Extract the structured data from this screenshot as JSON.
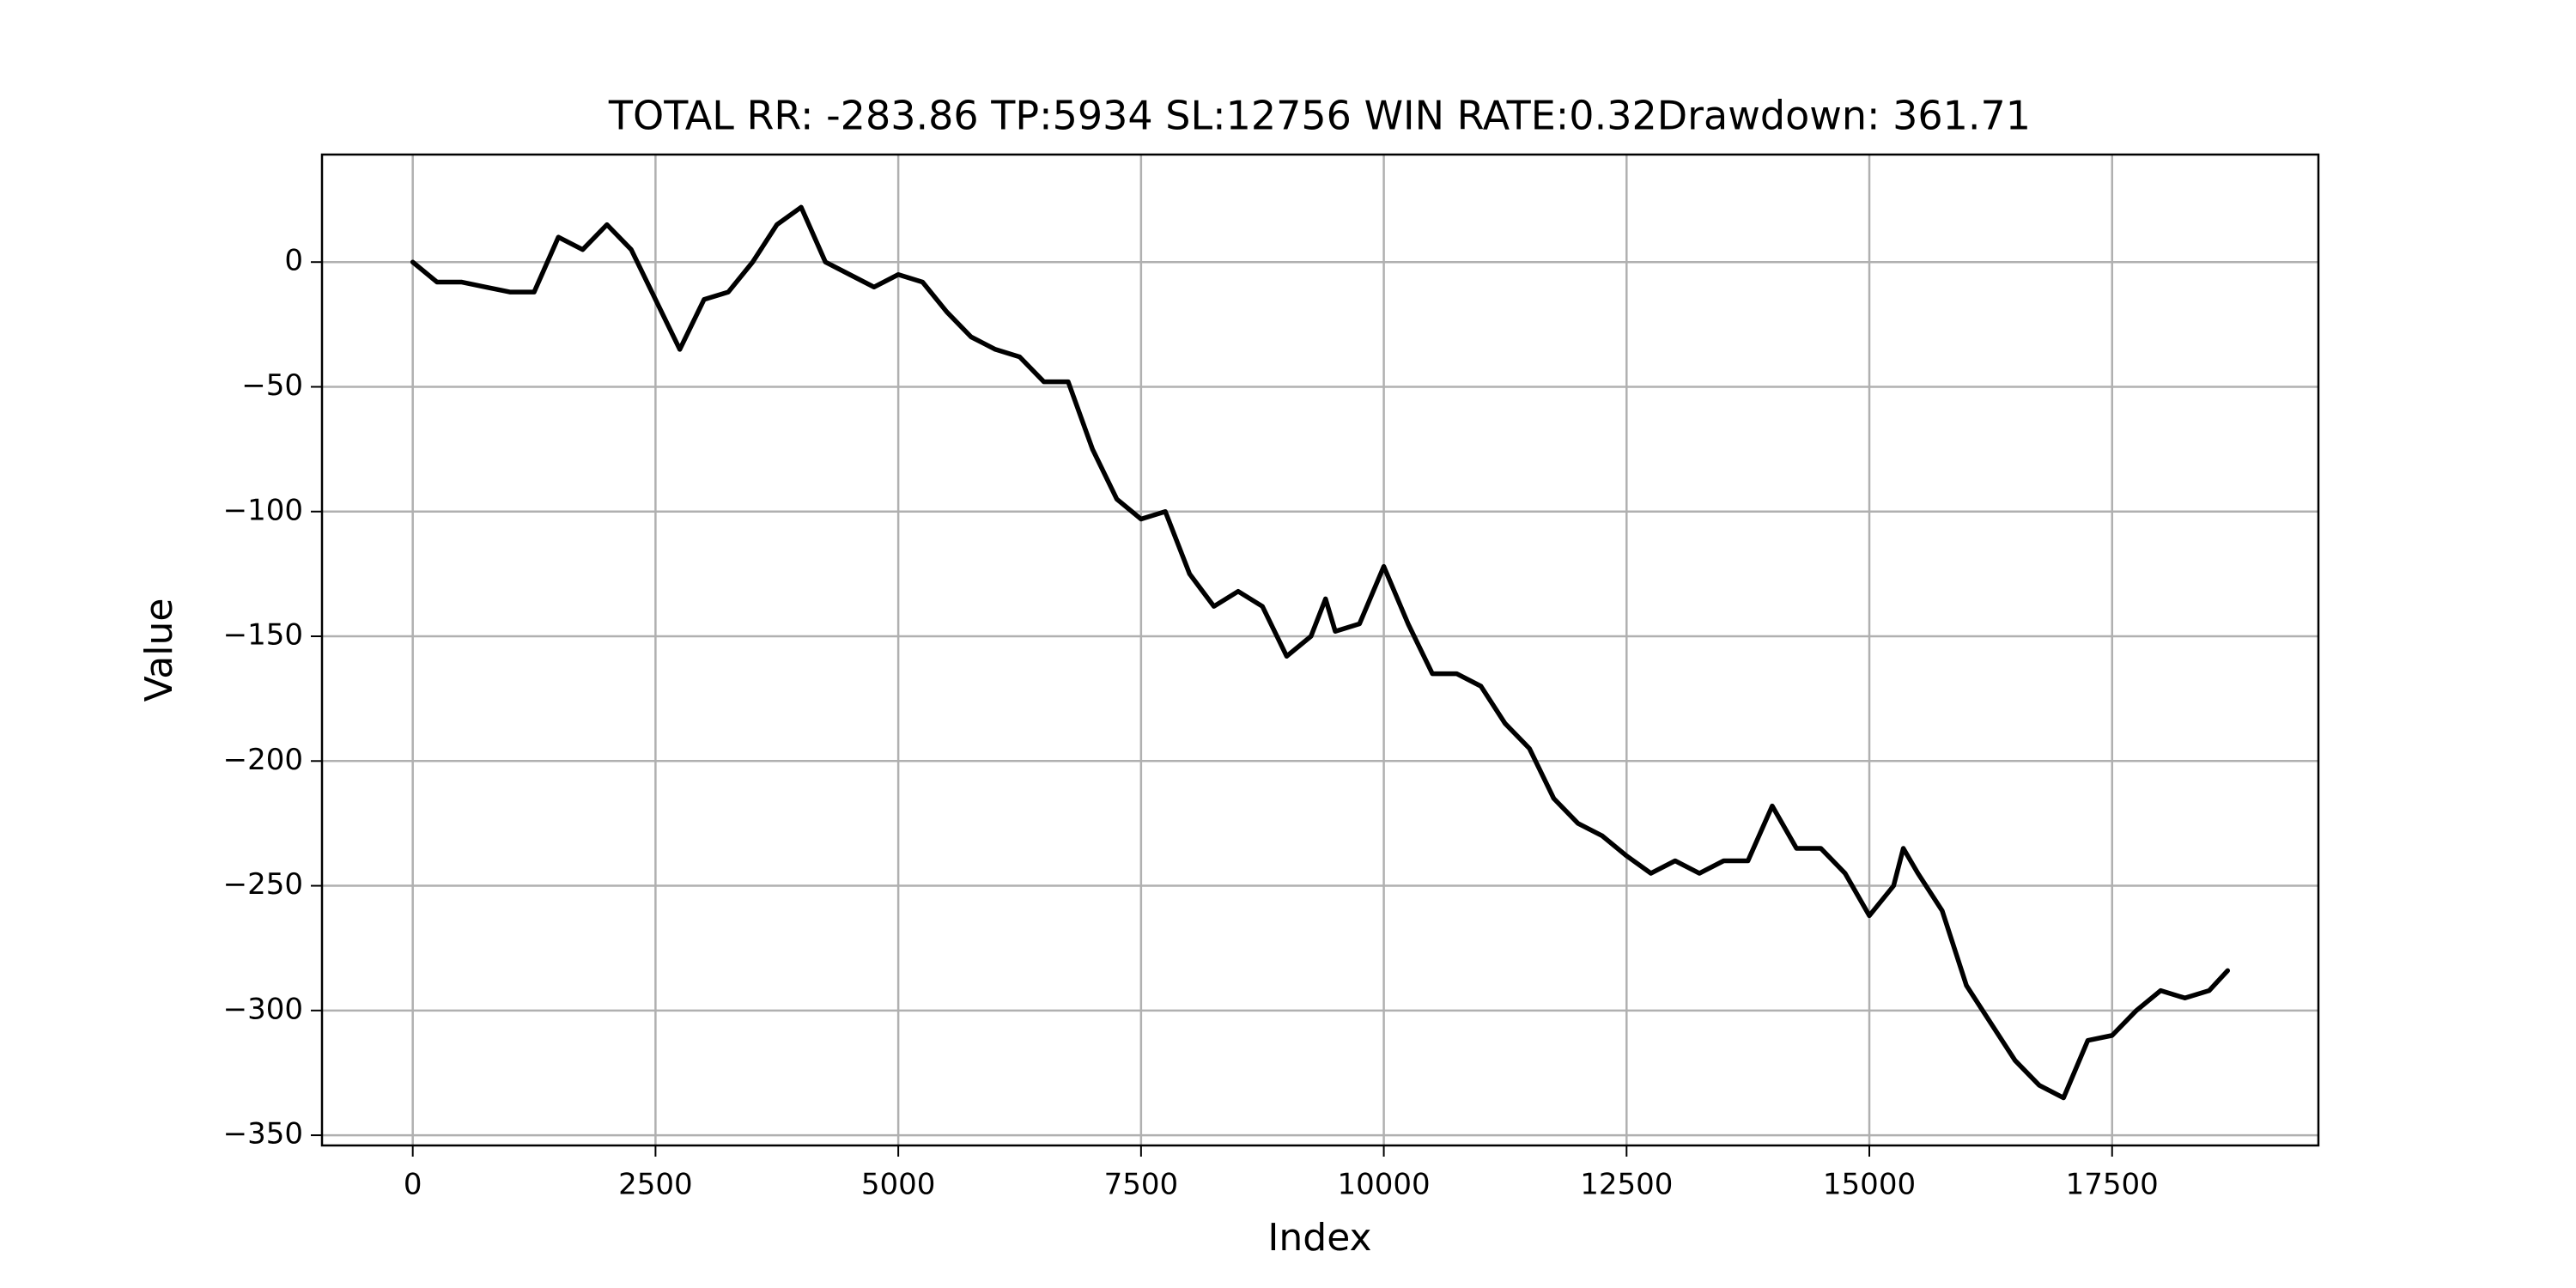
{
  "chart_data": {
    "type": "line",
    "title": "TOTAL RR: -283.86 TP:5934 SL:12756 WIN RATE:0.32Drawdown: 361.71",
    "x_label": "Index",
    "y_label": "Value",
    "grid": true,
    "xlim": [
      -934.5,
      19624.5
    ],
    "ylim": [
      -354.1,
      43.1
    ],
    "xticks": [
      0,
      2500,
      5000,
      7500,
      10000,
      12500,
      15000,
      17500
    ],
    "yticks": [
      {
        "value": 0,
        "label": "0"
      },
      {
        "value": -50,
        "label": "−50"
      },
      {
        "value": -100,
        "label": "−100"
      },
      {
        "value": -150,
        "label": "−150"
      },
      {
        "value": -200,
        "label": "−200"
      },
      {
        "value": -250,
        "label": "−250"
      },
      {
        "value": -300,
        "label": "−300"
      },
      {
        "value": -350,
        "label": "−350"
      }
    ],
    "x": [
      0,
      250,
      500,
      750,
      1000,
      1250,
      1500,
      1750,
      2000,
      2250,
      2500,
      2750,
      3000,
      3250,
      3500,
      3750,
      4000,
      4250,
      4500,
      4750,
      5000,
      5250,
      5500,
      5750,
      6000,
      6250,
      6500,
      6750,
      7000,
      7250,
      7500,
      7750,
      8000,
      8250,
      8500,
      8750,
      9000,
      9250,
      9400,
      9500,
      9750,
      10000,
      10250,
      10500,
      10750,
      11000,
      11250,
      11500,
      11750,
      12000,
      12250,
      12500,
      12750,
      13000,
      13250,
      13500,
      13750,
      14000,
      14250,
      14500,
      14750,
      15000,
      15250,
      15350,
      15500,
      15750,
      16000,
      16250,
      16500,
      16750,
      17000,
      17250,
      17500,
      17750,
      18000,
      18250,
      18500,
      18690
    ],
    "series": [
      {
        "color": "#000000",
        "values": [
          0,
          -8,
          -8,
          -10,
          -12,
          -12,
          10,
          5,
          15,
          5,
          -15,
          -35,
          -15,
          -12,
          0,
          15,
          22,
          0,
          -5,
          -10,
          -5,
          -8,
          -20,
          -30,
          -35,
          -38,
          -48,
          -48,
          -75,
          -95,
          -103,
          -100,
          -125,
          -138,
          -132,
          -138,
          -158,
          -150,
          -135,
          -148,
          -145,
          -122,
          -145,
          -165,
          -165,
          -170,
          -185,
          -195,
          -215,
          -225,
          -230,
          -238,
          -245,
          -240,
          -245,
          -240,
          -240,
          -218,
          -235,
          -235,
          -245,
          -262,
          -250,
          -235,
          -245,
          -260,
          -290,
          -305,
          -320,
          -330,
          -335,
          -312,
          -310,
          -300,
          -292,
          -295,
          -292,
          -284
        ]
      }
    ]
  }
}
